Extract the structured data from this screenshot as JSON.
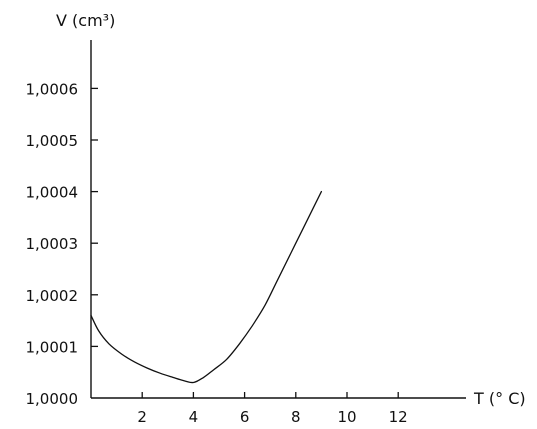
{
  "chart_data": {
    "type": "line",
    "title": "",
    "xlabel": "T (° C)",
    "ylabel": "V (cm³)",
    "x_ticks": [
      2,
      4,
      6,
      8,
      10,
      12
    ],
    "x_tick_labels": [
      "2",
      "4",
      "6",
      "8",
      "10",
      "12"
    ],
    "y_ticks": [
      1.0,
      1.0001,
      1.0002,
      1.0003,
      1.0004,
      1.0005,
      1.0006
    ],
    "y_tick_labels": [
      "1,0000",
      "1,0001",
      "1,0002",
      "1,0003",
      "1,0004",
      "1,0005",
      "1,0006"
    ],
    "xlim": [
      0,
      14.2
    ],
    "ylim": [
      1.0,
      1.0007
    ],
    "grid": false,
    "series": [
      {
        "x": [
          0,
          0.3,
          0.7,
          1.2,
          1.7,
          2.2,
          2.7,
          3.2,
          3.6,
          4.0,
          4.4,
          4.8,
          5.3,
          5.8,
          6.3,
          6.8,
          7.3,
          7.8,
          8.3,
          8.7,
          9.0
        ],
        "y": [
          1.00016,
          1.00013,
          1.000105,
          1.000085,
          1.00007,
          1.000058,
          1.000048,
          1.00004,
          1.000034,
          1.00003,
          1.00004,
          1.000055,
          1.000075,
          1.000105,
          1.00014,
          1.00018,
          1.00023,
          1.00028,
          1.00033,
          1.00037,
          1.0004
        ]
      }
    ]
  }
}
